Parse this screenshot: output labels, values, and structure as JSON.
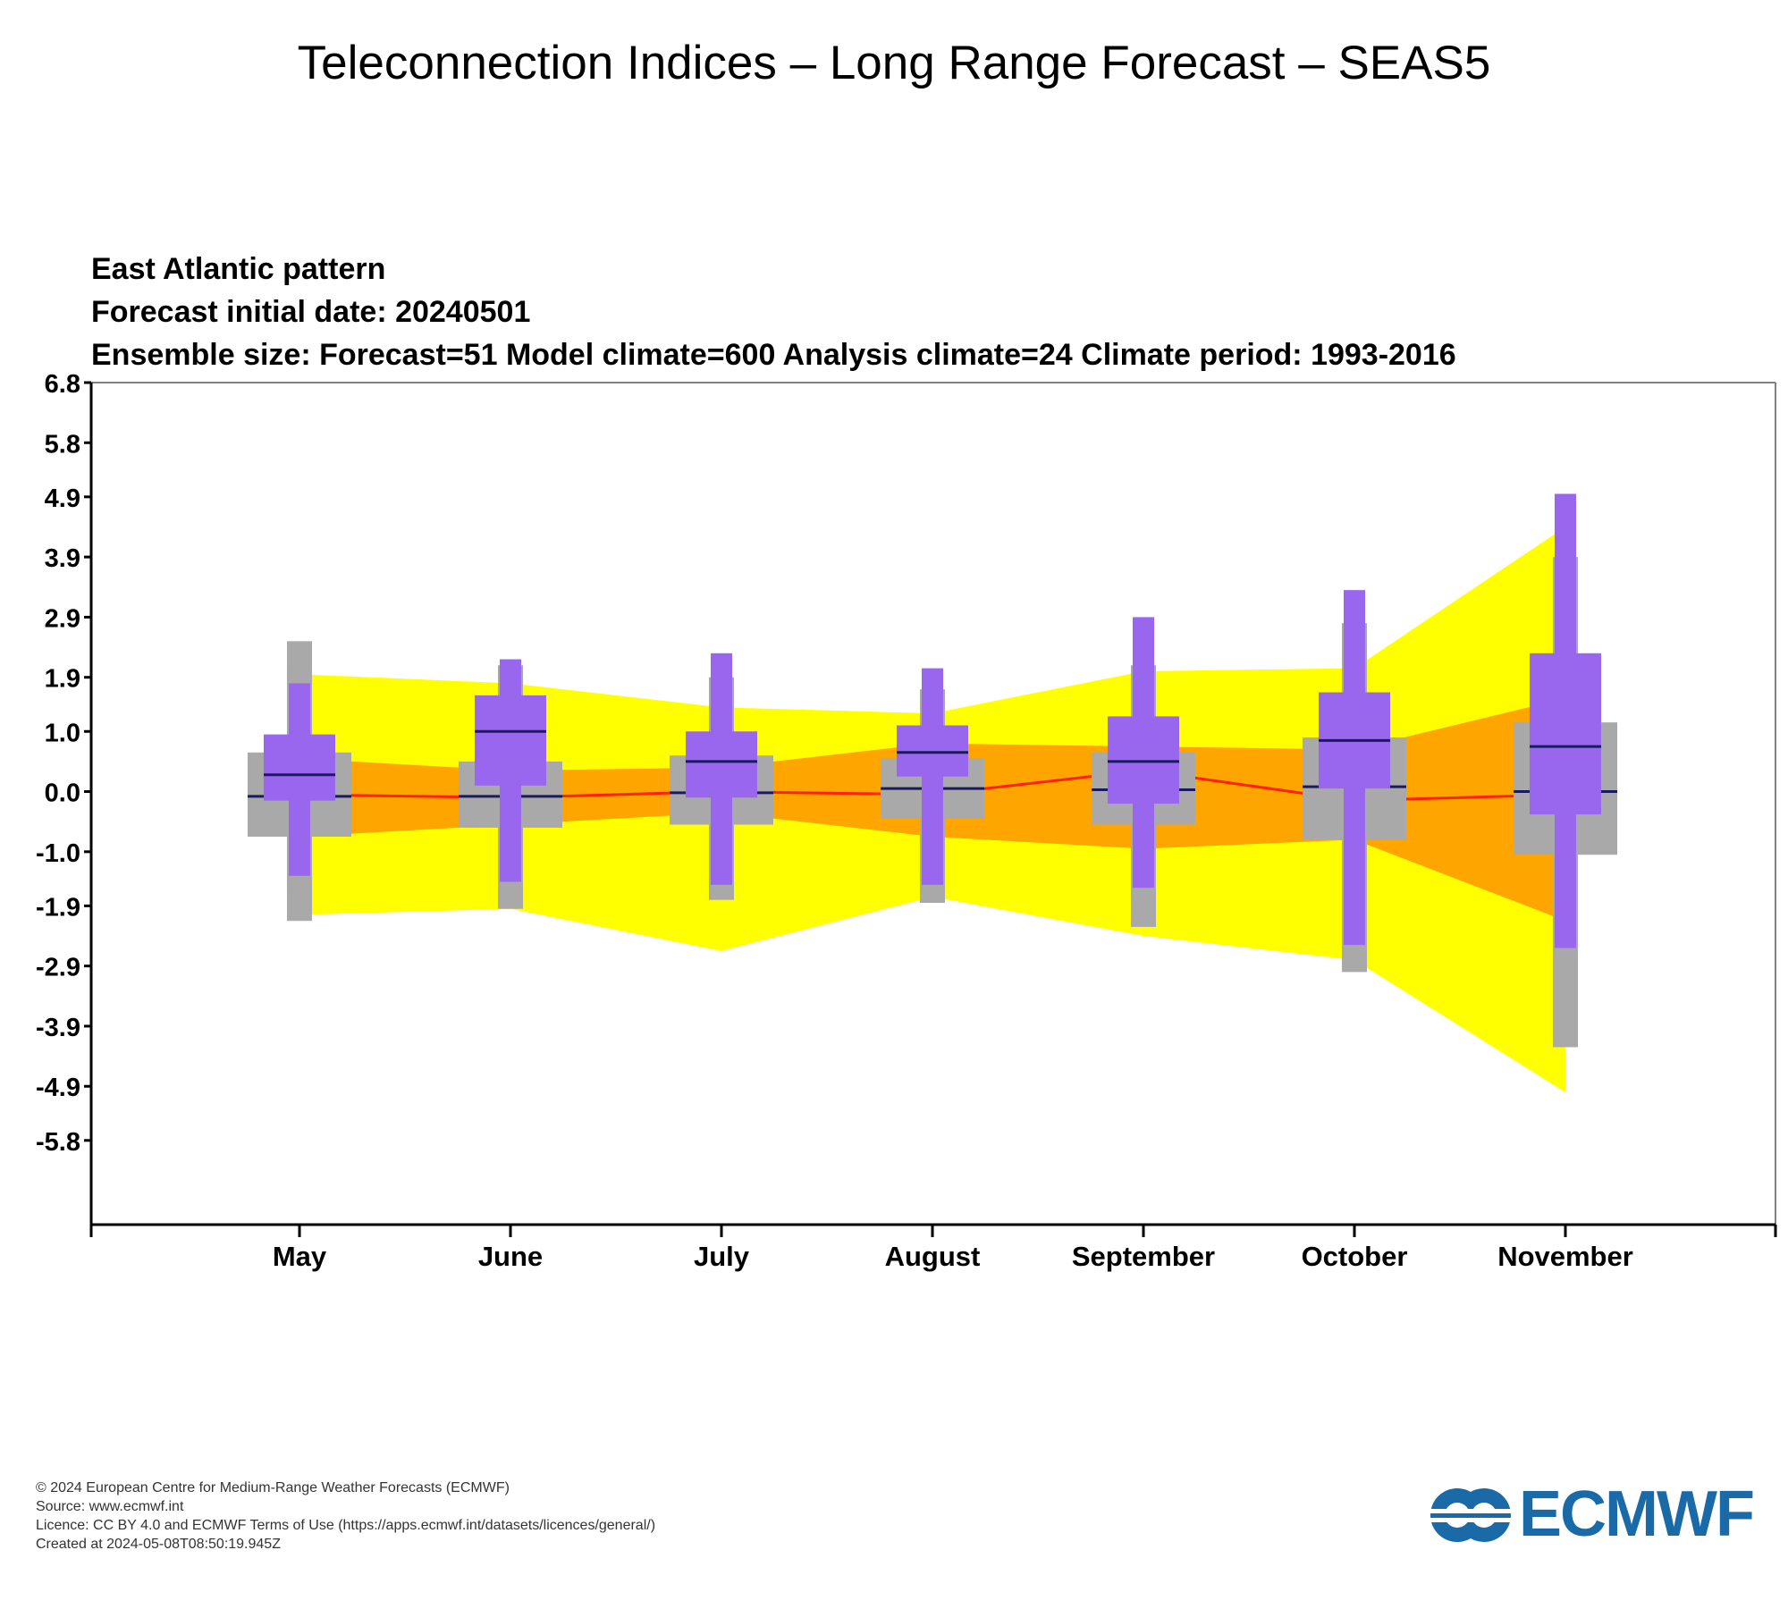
{
  "page_title": "Teleconnection Indices – Long Range Forecast – SEAS5",
  "footer": {
    "copyright": "© 2024 European Centre for Medium-Range Weather Forecasts (ECMWF)",
    "source": "Source: www.ecmwf.int",
    "licence": "Licence: CC BY 4.0 and ECMWF Terms of Use (https://apps.ecmwf.int/datasets/licences/general/)",
    "created": "Created at 2024-05-08T08:50:19.945Z"
  },
  "logo": {
    "text": "ECMWF",
    "color": "#1a6aa8"
  },
  "chart_data": {
    "type": "boxplot-with-climate-bands",
    "title_lines": [
      "East Atlantic pattern",
      " Forecast initial date: 20240501",
      "Ensemble size: Forecast=51 Model climate=600 Analysis climate=24   Climate period: 1993-2016"
    ],
    "categories": [
      "May",
      "June",
      "July",
      "August",
      "September",
      "October",
      "November"
    ],
    "ylim": [
      -7.2,
      6.8
    ],
    "yticks": [
      6.8,
      5.8,
      4.9,
      3.9,
      2.9,
      1.9,
      1.0,
      0.0,
      -1.0,
      -1.9,
      -2.9,
      -3.9,
      -4.9,
      -5.8
    ],
    "ytick_labels": [
      "6.8",
      "5.8",
      "4.9",
      "3.9",
      "2.9",
      "1.9",
      "1.0",
      "0.0",
      "-1.0",
      "-1.9",
      "-2.9",
      "-3.9",
      "-4.9",
      "-5.8"
    ],
    "colors": {
      "outer_band": "#ffff00",
      "inner_band": "#ffa500",
      "median_line": "#ff2200",
      "model_climate_box": "#a9a9a9",
      "forecast_box": "#9966ee",
      "median_mark": "#1a1a5e"
    },
    "climate_bands": {
      "outer_upper": [
        1.95,
        1.8,
        1.4,
        1.3,
        2.0,
        2.05,
        4.4
      ],
      "outer_lower": [
        -2.05,
        -1.95,
        -2.65,
        -1.75,
        -2.4,
        -2.8,
        -5.0
      ],
      "inner_upper": [
        0.55,
        0.35,
        0.4,
        0.8,
        0.75,
        0.7,
        1.55
      ],
      "inner_lower": [
        -0.75,
        -0.55,
        -0.35,
        -0.75,
        -0.95,
        -0.8,
        -2.15
      ],
      "median": [
        -0.05,
        -0.1,
        0.0,
        -0.05,
        0.35,
        -0.15,
        -0.05
      ]
    },
    "model_climate": {
      "max": [
        2.5,
        2.1,
        1.9,
        1.7,
        2.1,
        2.8,
        3.9
      ],
      "q3": [
        0.65,
        0.5,
        0.6,
        0.55,
        0.65,
        0.9,
        1.15
      ],
      "median": [
        -0.08,
        -0.08,
        -0.02,
        0.05,
        0.03,
        0.08,
        0.0
      ],
      "q1": [
        -0.75,
        -0.6,
        -0.55,
        -0.45,
        -0.55,
        -0.8,
        -1.05
      ],
      "min": [
        -2.15,
        -1.95,
        -1.8,
        -1.85,
        -2.25,
        -3.0,
        -4.25
      ]
    },
    "forecast": {
      "max": [
        1.8,
        2.2,
        2.3,
        2.05,
        2.9,
        3.35,
        4.95
      ],
      "q3": [
        0.95,
        1.6,
        1.0,
        1.1,
        1.25,
        1.65,
        2.3
      ],
      "median": [
        0.28,
        1.0,
        0.5,
        0.65,
        0.5,
        0.85,
        0.75
      ],
      "q1": [
        -0.15,
        0.1,
        -0.1,
        0.25,
        -0.2,
        0.05,
        -0.38
      ],
      "min": [
        -1.4,
        -1.5,
        -1.55,
        -1.55,
        -1.6,
        -2.55,
        -2.6
      ]
    }
  }
}
